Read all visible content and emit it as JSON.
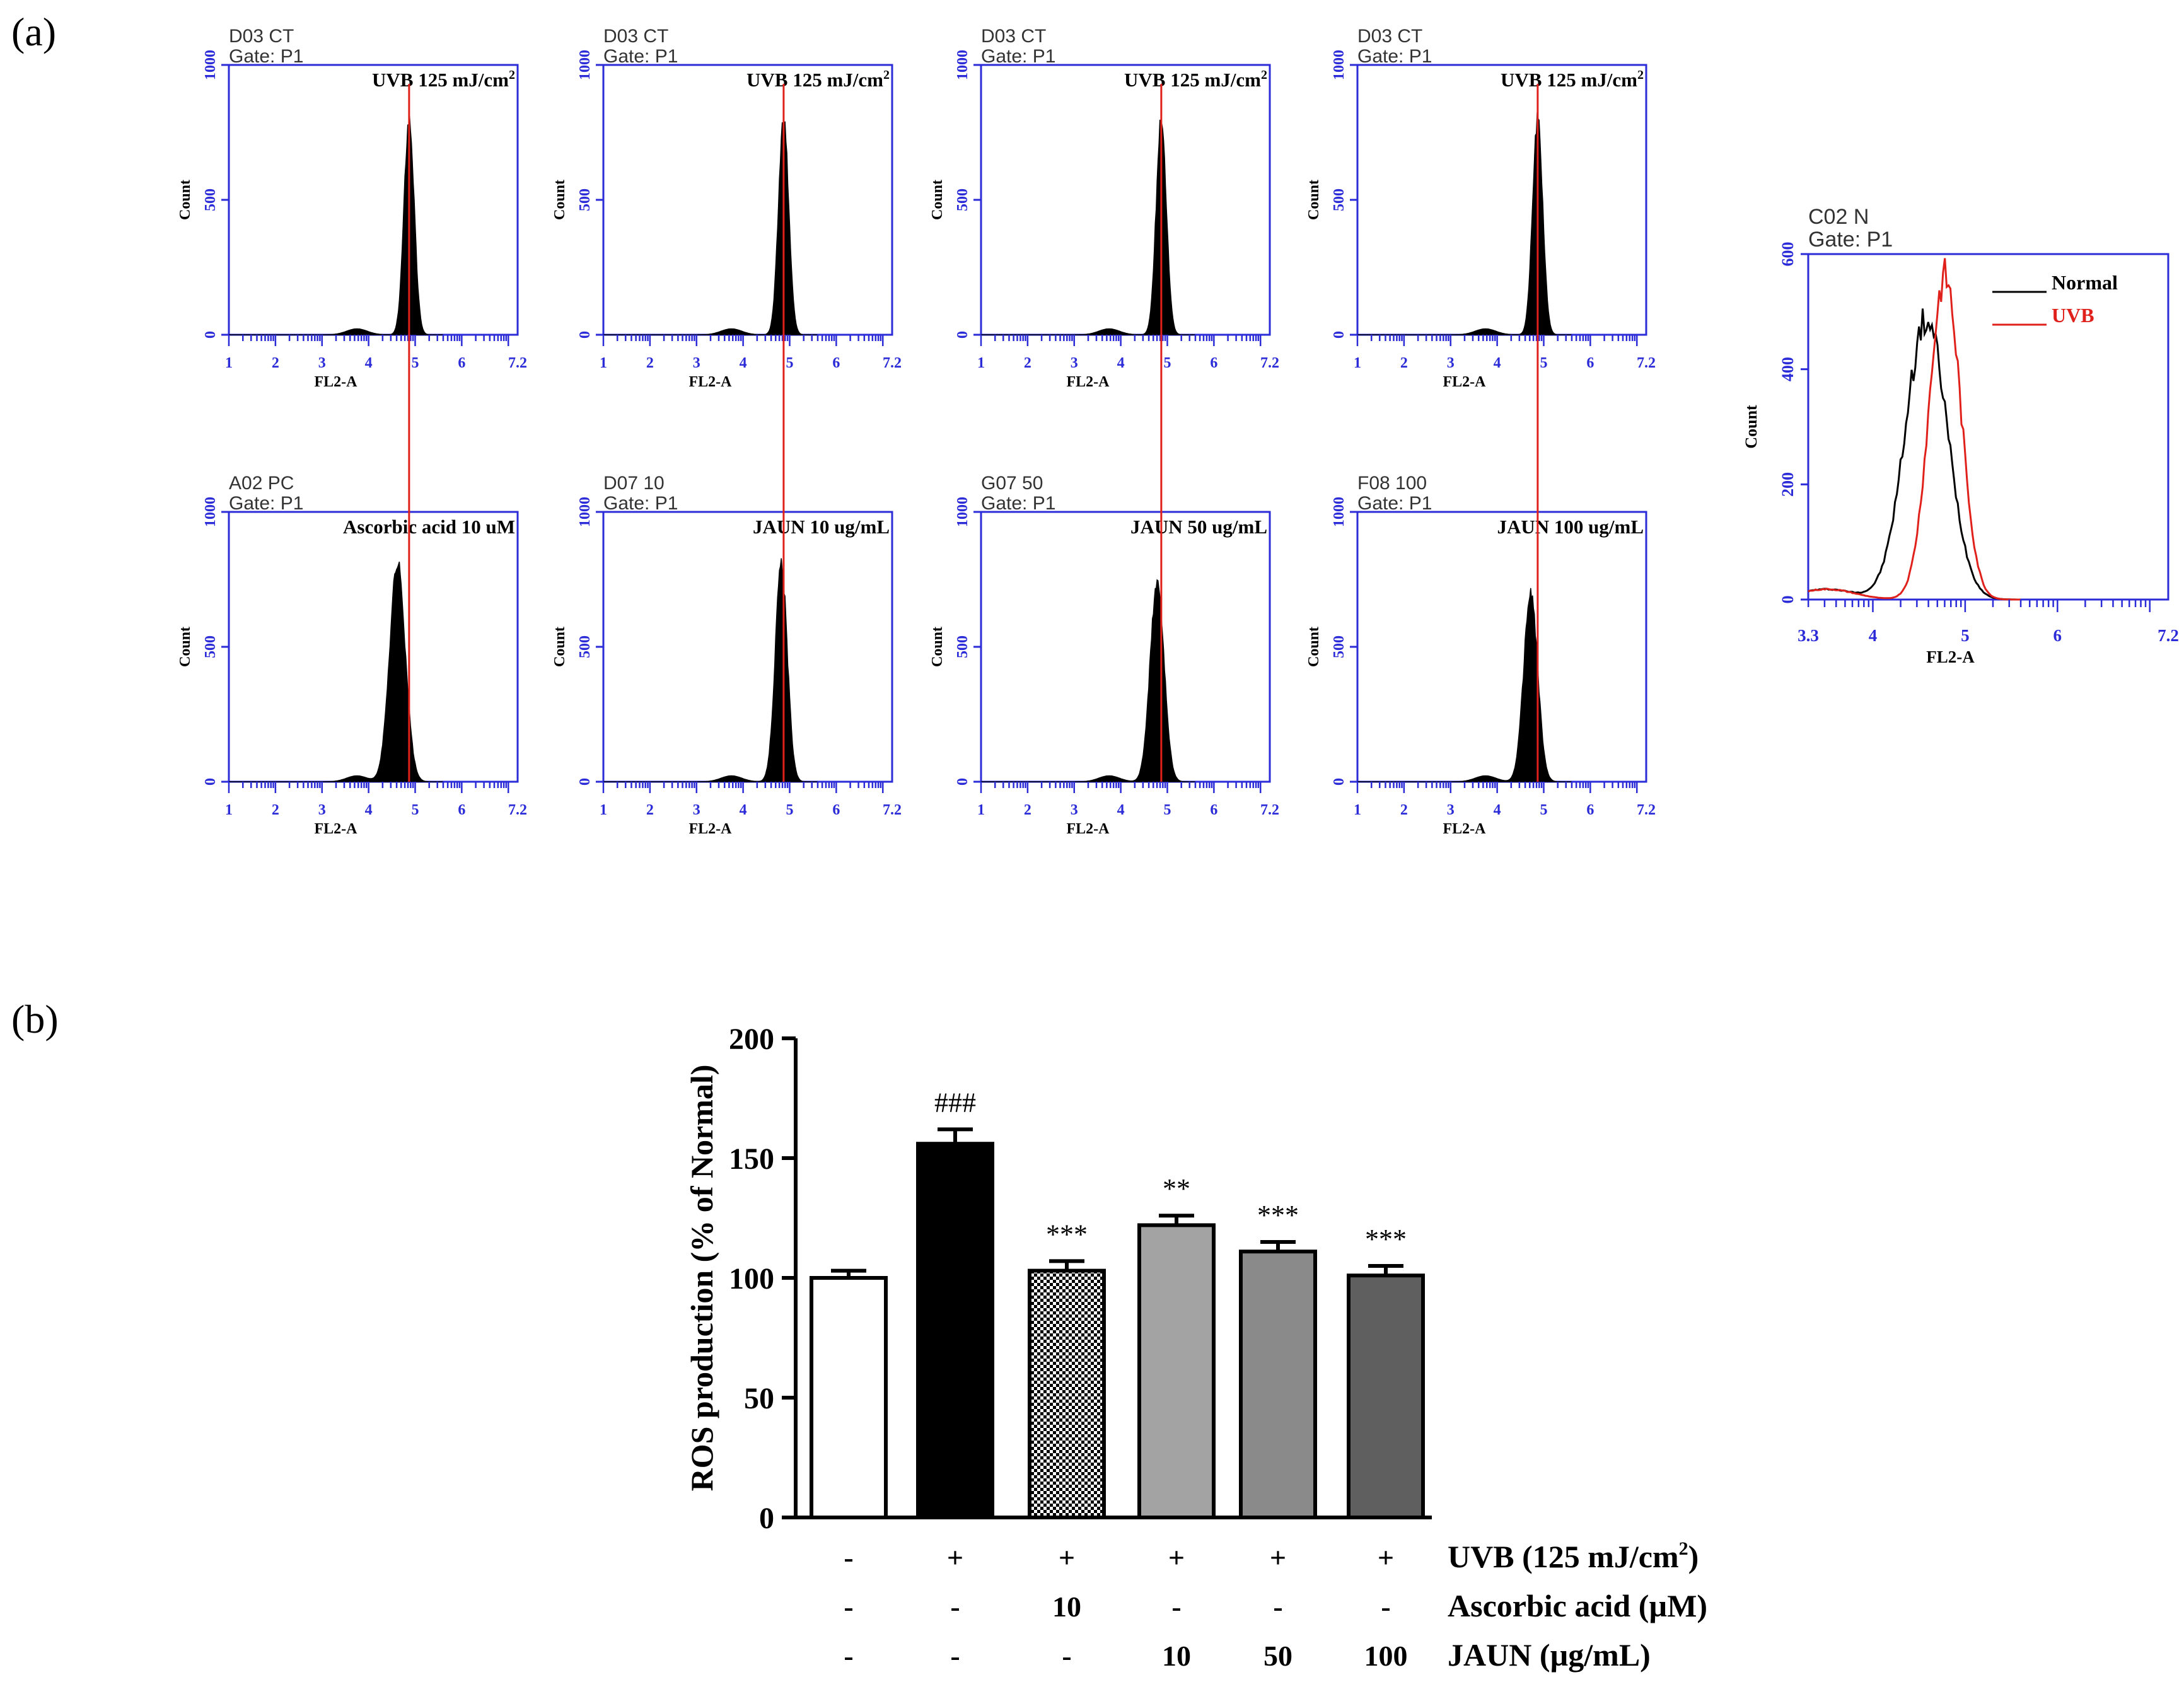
{
  "panel_a": {
    "label": "(a)",
    "histograms": [
      {
        "sample": "D03 CT",
        "gate": "Gate: P1",
        "annotation": "UVB  125 mJ/cm",
        "annotation_sup": "2"
      },
      {
        "sample": "D03 CT",
        "gate": "Gate: P1",
        "annotation": "UVB  125 mJ/cm",
        "annotation_sup": "2"
      },
      {
        "sample": "D03 CT",
        "gate": "Gate: P1",
        "annotation": "UVB  125 mJ/cm",
        "annotation_sup": "2"
      },
      {
        "sample": "D03 CT",
        "gate": "Gate: P1",
        "annotation": "UVB  125 mJ/cm",
        "annotation_sup": "2"
      },
      {
        "sample": "A02 PC",
        "gate": "Gate: P1",
        "annotation": "Ascorbic  acid  10 uM",
        "annotation_sup": ""
      },
      {
        "sample": "D07 10",
        "gate": "Gate: P1",
        "annotation": "JAUN  10 ug/mL",
        "annotation_sup": ""
      },
      {
        "sample": "G07 50",
        "gate": "Gate: P1",
        "annotation": "JAUN  50 ug/mL",
        "annotation_sup": ""
      },
      {
        "sample": "F08 100",
        "gate": "Gate: P1",
        "annotation": "JAUN  100 ug/mL",
        "annotation_sup": ""
      }
    ],
    "overlay": {
      "sample": "C02 N",
      "gate": "Gate: P1",
      "legend": [
        {
          "label": "Normal",
          "color": "#000000"
        },
        {
          "label": "UVB",
          "color": "#e0201b"
        }
      ]
    }
  },
  "panel_b": {
    "label": "(b)",
    "row_labels": [
      "UVB (125 mJ/cm",
      "Ascorbic acid (µM)",
      "JAUN (µg/mL)"
    ],
    "row_label_sup": "2",
    "row_label_tail": ")"
  },
  "chart_data": [
    {
      "type": "histogram",
      "panel": "a",
      "description_of_axes": "flow cytometry histograms",
      "xlabel": "FL2-A",
      "ylabel": "Count",
      "xticks": [
        "1",
        "2",
        "3",
        "4",
        "5",
        "6",
        "7.2"
      ],
      "xlim": [
        1,
        7.2
      ],
      "yticks": [
        "0",
        "500",
        "1000"
      ],
      "ylim": [
        0,
        1000
      ],
      "reference_line_x": 4.87,
      "reference_line_color": "#e0201b",
      "histogram_fill": "#000000",
      "axis_color": "#2b2bd8",
      "series": [
        {
          "name": "D03 CT",
          "peak_x": 4.87,
          "peak_count": 800,
          "spread": 0.11
        },
        {
          "name": "D03 CT",
          "peak_x": 4.87,
          "peak_count": 800,
          "spread": 0.11
        },
        {
          "name": "D03 CT",
          "peak_x": 4.87,
          "peak_count": 800,
          "spread": 0.11
        },
        {
          "name": "D03 CT",
          "peak_x": 4.87,
          "peak_count": 800,
          "spread": 0.11
        },
        {
          "name": "A02 PC",
          "peak_x": 4.62,
          "peak_count": 810,
          "spread": 0.17
        },
        {
          "name": "D07 10",
          "peak_x": 4.82,
          "peak_count": 800,
          "spread": 0.13
        },
        {
          "name": "G07 50",
          "peak_x": 4.78,
          "peak_count": 740,
          "spread": 0.15
        },
        {
          "name": "F08 100",
          "peak_x": 4.72,
          "peak_count": 700,
          "spread": 0.15
        }
      ]
    },
    {
      "type": "line",
      "panel": "a",
      "title": "C02 N",
      "xlabel": "FL2-A",
      "ylabel": "Count",
      "xticks": [
        "3.3",
        "4",
        "5",
        "6",
        "7.2"
      ],
      "xlim": [
        3.3,
        7.2
      ],
      "yticks": [
        "0",
        "200",
        "400",
        "600"
      ],
      "ylim": [
        0,
        600
      ],
      "series": [
        {
          "name": "Normal",
          "color": "#000000",
          "peak_x": 4.58,
          "peak_count": 485,
          "spread": 0.23
        },
        {
          "name": "UVB",
          "color": "#e0201b",
          "peak_x": 4.78,
          "peak_count": 560,
          "spread": 0.17
        }
      ]
    },
    {
      "type": "bar",
      "panel": "b",
      "ylabel": "ROS production (% of Normal)",
      "ylim": [
        0,
        200
      ],
      "yticks": [
        "0",
        "50",
        "100",
        "150",
        "200"
      ],
      "categories": [
        "Normal",
        "UVB",
        "UVB + Ascorbic acid 10",
        "UVB + JAUN 10",
        "UVB + JAUN 50",
        "UVB + JAUN 100"
      ],
      "values": [
        100,
        156,
        103,
        122,
        111,
        101
      ],
      "errors": [
        3,
        6,
        4,
        4,
        4,
        4
      ],
      "significance": [
        "",
        "###",
        "***",
        "**",
        "***",
        "***"
      ],
      "fills": [
        "white",
        "black",
        "checker",
        "#a3a3a3",
        "#8a8a8a",
        "#5f5f5f"
      ],
      "treatment_rows": [
        {
          "label": "UVB",
          "values": [
            "-",
            "+",
            "+",
            "+",
            "+",
            "+"
          ]
        },
        {
          "label": "Ascorbic acid",
          "values": [
            "-",
            "-",
            "10",
            "-",
            "-",
            "-"
          ]
        },
        {
          "label": "JAUN",
          "values": [
            "-",
            "-",
            "-",
            "10",
            "50",
            "100"
          ]
        }
      ]
    }
  ]
}
